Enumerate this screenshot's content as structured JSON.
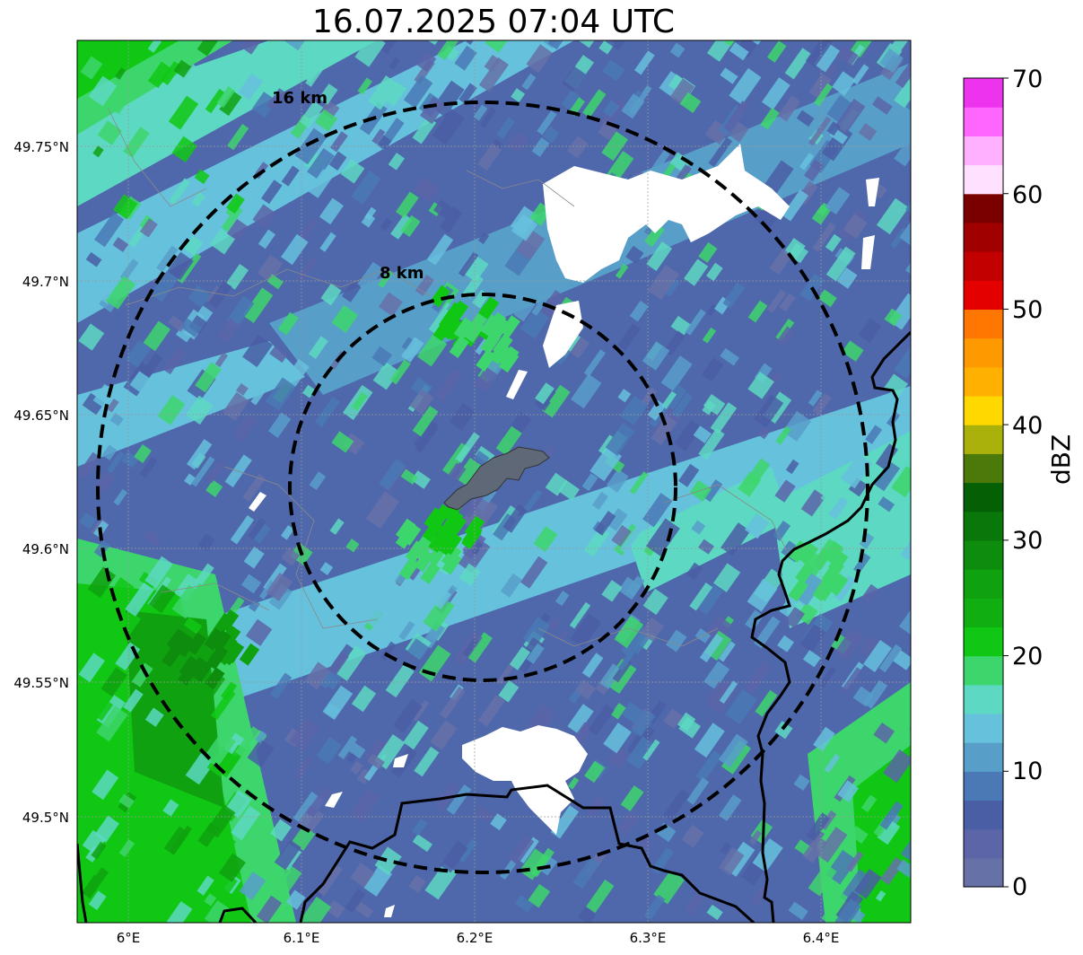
{
  "title": "16.07.2025 07:04 UTC",
  "map": {
    "type": "radar-reflectivity-map",
    "lon_range": [
      5.97,
      6.45
    ],
    "lat_range": [
      49.46,
      49.79
    ],
    "lon_ticks": [
      "6°E",
      "6.1°E",
      "6.2°E",
      "6.3°E",
      "6.4°E"
    ],
    "lat_ticks": [
      "49.75°N",
      "49.7°N",
      "49.65°N",
      "49.6°N",
      "49.55°N",
      "49.5°N"
    ],
    "rings": [
      {
        "label": "8 km",
        "radius_km": 8
      },
      {
        "label": "16 km",
        "radius_km": 16
      }
    ],
    "radar_center": {
      "lon": 6.2,
      "lat": 49.62
    },
    "grid": true
  },
  "colorbar": {
    "title": "dBZ",
    "tick_labels": [
      "0",
      "10",
      "20",
      "30",
      "40",
      "50",
      "60",
      "70"
    ],
    "colors": [
      "#6671a8",
      "#5b65a8",
      "#4a5ea5",
      "#4a79b5",
      "#579ec9",
      "#66c1dd",
      "#5dd8c2",
      "#3dd66c",
      "#10c814",
      "#10ae10",
      "#0fa10f",
      "#0d8c0d",
      "#0a770a",
      "#056005",
      "#4b7a0a",
      "#aab10a",
      "#ffd800",
      "#ffb000",
      "#ff9900",
      "#ff7700",
      "#e50000",
      "#c20000",
      "#a00000",
      "#7a0000",
      "#ffe0ff",
      "#ffb0ff",
      "#ff66ff",
      "#ee33ee"
    ]
  }
}
